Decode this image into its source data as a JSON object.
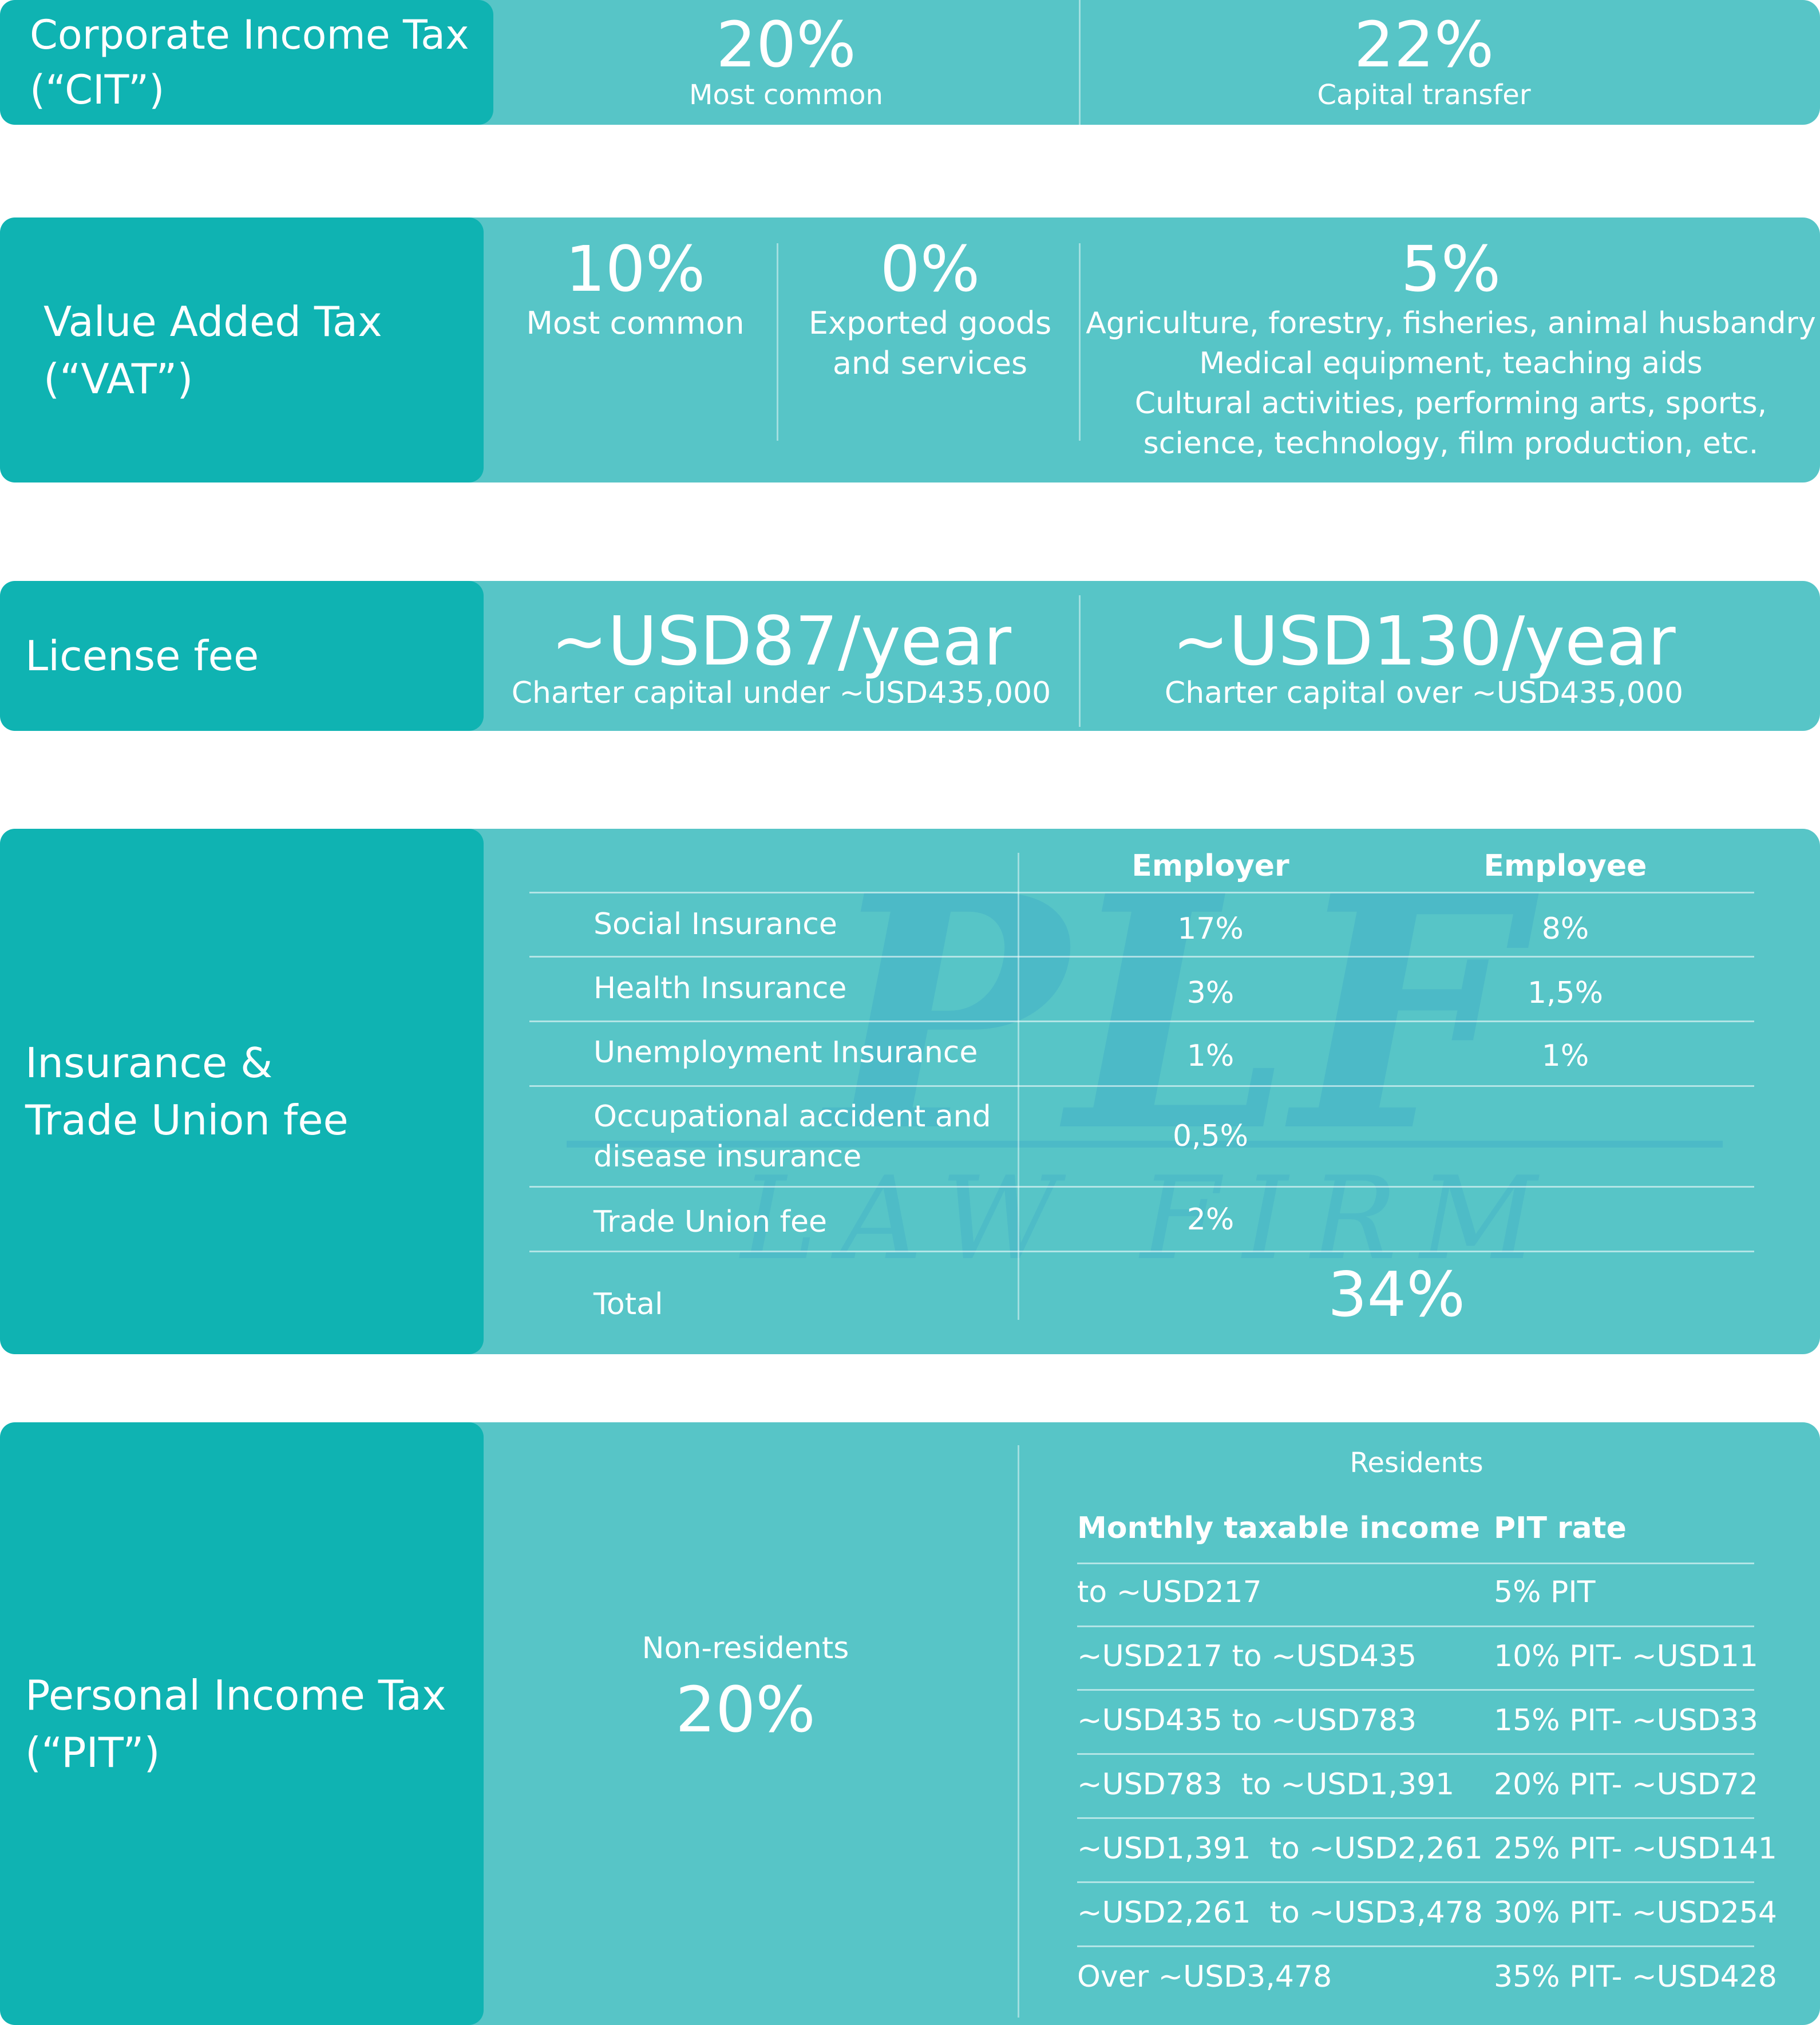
{
  "cit": {
    "title": "Corporate Income Tax\n(“CIT”)",
    "items": [
      {
        "value": "20%",
        "label": "Most common"
      },
      {
        "value": "22%",
        "label": "Capital transfer"
      }
    ]
  },
  "vat": {
    "title": "Value Added Tax\n(“VAT”)",
    "items": [
      {
        "value": "10%",
        "label": "Most common"
      },
      {
        "value": "0%",
        "label": "Exported goods\nand services"
      },
      {
        "value": "5%",
        "label": "Agriculture, forestry, fisheries, animal husbandry\nMedical equipment, teaching aids\nCultural activities, performing arts, sports,\nscience, technology, film production, etc."
      }
    ]
  },
  "license": {
    "title": "License fee",
    "items": [
      {
        "value": "~USD87/year",
        "label": "Charter capital under ~USD435,000"
      },
      {
        "value": "~USD130/year",
        "label": "Charter capital over ~USD435,000"
      }
    ]
  },
  "insurance": {
    "title": "Insurance &\nTrade Union fee",
    "headers": {
      "employer": "Employer",
      "employee": "Employee"
    },
    "rows": [
      {
        "name": "Social Insurance",
        "employer": "17%",
        "employee": "8%"
      },
      {
        "name": "Health Insurance",
        "employer": "3%",
        "employee": "1,5%"
      },
      {
        "name": "Unemployment Insurance",
        "employer": "1%",
        "employee": "1%"
      },
      {
        "name": "Occupational accident and\ndisease insurance",
        "employer": "0,5%",
        "employee": ""
      },
      {
        "name": "Trade Union fee",
        "employer": "2%",
        "employee": ""
      }
    ],
    "total_label": "Total",
    "total_value": "34%"
  },
  "pit": {
    "title": "Personal Income Tax\n(“PIT”)",
    "nonresidents_label": "Non-residents",
    "nonresidents_value": "20%",
    "residents_label": "Residents",
    "headers": {
      "income": "Monthly taxable income",
      "rate": "PIT rate"
    },
    "rows": [
      {
        "income": "to ~USD217",
        "rate": "5% PIT"
      },
      {
        "income": "~USD217 to ~USD435",
        "rate": "10% PIT- ~USD11"
      },
      {
        "income": "~USD435 to ~USD783",
        "rate": "15% PIT- ~USD33"
      },
      {
        "income": "~USD783  to ~USD1,391",
        "rate": "20% PIT- ~USD72"
      },
      {
        "income": "~USD1,391  to ~USD2,261",
        "rate": "25% PIT- ~USD141"
      },
      {
        "income": "~USD2,261  to ~USD3,478",
        "rate": "30% PIT- ~USD254"
      },
      {
        "income": "Over ~USD3,478",
        "rate": "35% PIT- ~USD428"
      }
    ]
  },
  "watermark": {
    "line1": "PLF",
    "line2": "LAW FIRM"
  },
  "colors": {
    "tab": "#0fb3b2",
    "panel": "#57c5c7",
    "watermark": "#3aa7c9"
  }
}
